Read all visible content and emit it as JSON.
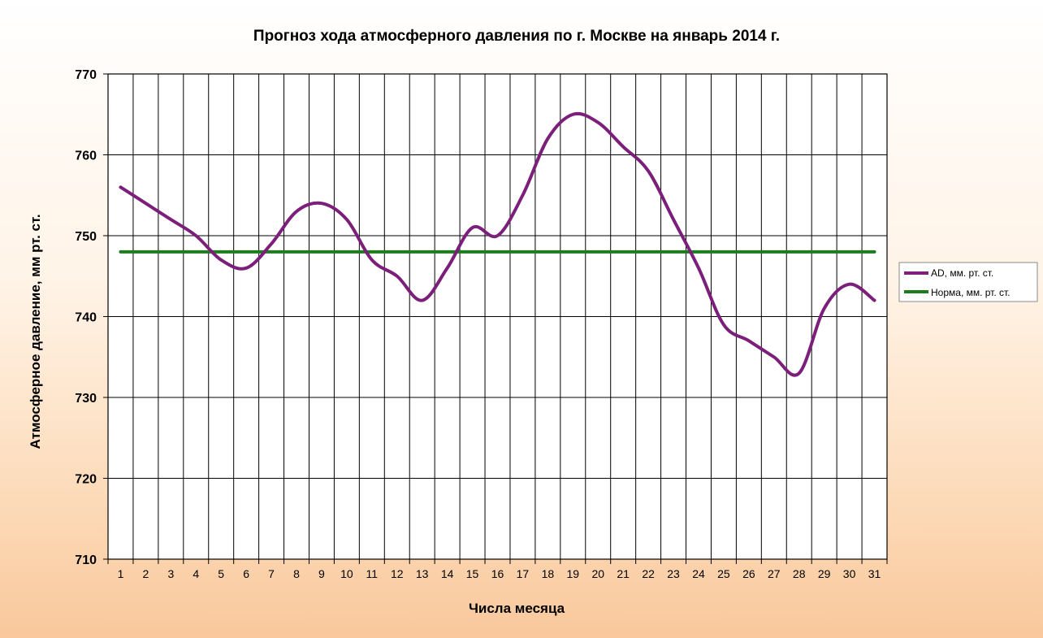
{
  "chart_data": {
    "type": "line",
    "title": "Прогноз хода атмосферного давления по г. Москве на январь 2014 г.",
    "xlabel": "Числа месяца",
    "ylabel": "Атмосферное давление, мм рт. ст.",
    "categories": [
      1,
      2,
      3,
      4,
      5,
      6,
      7,
      8,
      9,
      10,
      11,
      12,
      13,
      14,
      15,
      16,
      17,
      18,
      19,
      20,
      21,
      22,
      23,
      24,
      25,
      26,
      27,
      28,
      29,
      30,
      31
    ],
    "ylim": [
      710,
      770
    ],
    "yticks": [
      710,
      720,
      730,
      740,
      750,
      760,
      770
    ],
    "grid": true,
    "legend": "right",
    "series": [
      {
        "name": "AD, мм. рт. ст.",
        "color": "#7b1f7b",
        "smooth": true,
        "values": [
          756,
          754,
          752,
          750,
          747,
          746,
          749,
          753,
          754,
          752,
          747,
          745,
          742,
          746,
          751,
          750,
          755,
          762,
          765,
          764,
          761,
          758,
          752,
          746,
          739,
          737,
          735,
          733,
          741,
          744,
          742
        ]
      },
      {
        "name": "Норма, мм. рт. ст.",
        "color": "#1e7b1e",
        "smooth": false,
        "values": [
          748,
          748,
          748,
          748,
          748,
          748,
          748,
          748,
          748,
          748,
          748,
          748,
          748,
          748,
          748,
          748,
          748,
          748,
          748,
          748,
          748,
          748,
          748,
          748,
          748,
          748,
          748,
          748,
          748,
          748,
          748
        ]
      }
    ]
  }
}
